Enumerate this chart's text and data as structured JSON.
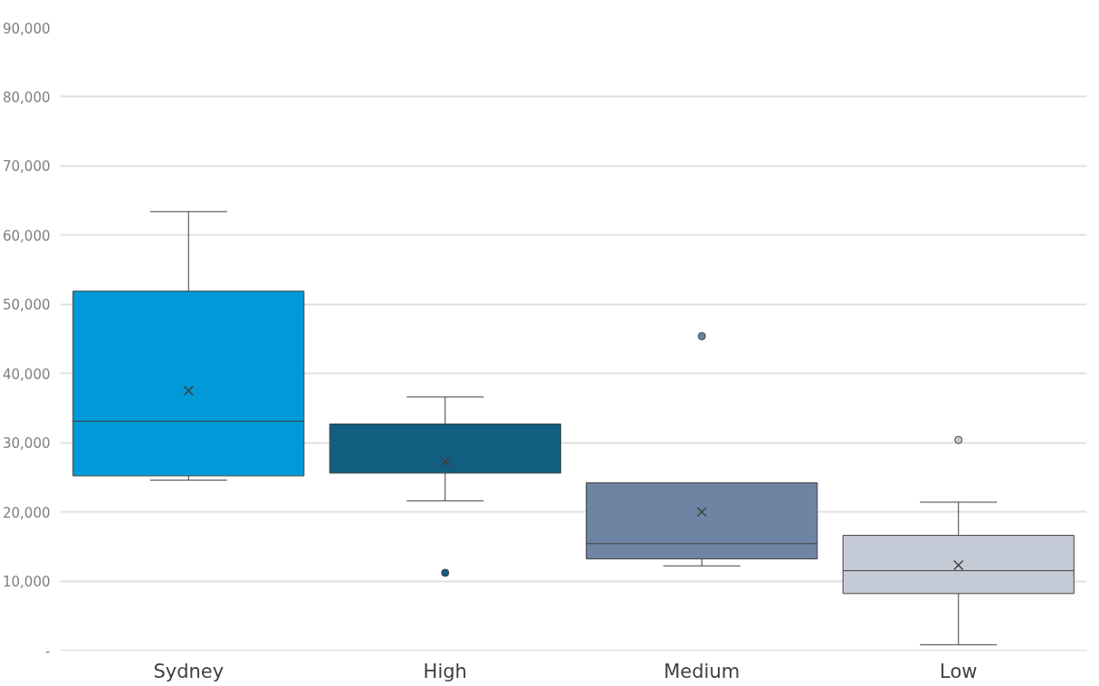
{
  "chart_data": {
    "type": "box",
    "categories": [
      "Sydney",
      "High",
      "Medium",
      "Low"
    ],
    "colors": [
      "#009ad8",
      "#125e80",
      "#6e84a3",
      "#c5cbd6"
    ],
    "boxes": [
      {
        "low": 24600,
        "q1": 25200,
        "median": 33100,
        "q3": 51900,
        "high": 63400,
        "mean": 37500
      },
      {
        "low": 21600,
        "q1": 25600,
        "median": 32700,
        "q3": 32700,
        "high": 36600,
        "mean": 27300,
        "outliers": [
          11200
        ]
      },
      {
        "low": 12200,
        "q1": 13200,
        "median": 15400,
        "q3": 24200,
        "high": 24200,
        "mean": 20000,
        "outliers": [
          45400
        ]
      },
      {
        "low": 800,
        "q1": 8200,
        "median": 11500,
        "q3": 16600,
        "high": 21400,
        "mean": 12300,
        "outliers": [
          30400
        ]
      }
    ],
    "ylim": [
      0,
      90000
    ],
    "yticks": [
      {
        "value": 0,
        "label": "-"
      },
      {
        "value": 10000,
        "label": "10,000"
      },
      {
        "value": 20000,
        "label": "20,000"
      },
      {
        "value": 30000,
        "label": "30,000"
      },
      {
        "value": 40000,
        "label": "40,000"
      },
      {
        "value": 50000,
        "label": "50,000"
      },
      {
        "value": 60000,
        "label": "60,000"
      },
      {
        "value": 70000,
        "label": "70,000"
      },
      {
        "value": 80000,
        "label": "80,000"
      },
      {
        "value": 90000,
        "label": "90,000"
      }
    ],
    "grid": "y"
  }
}
